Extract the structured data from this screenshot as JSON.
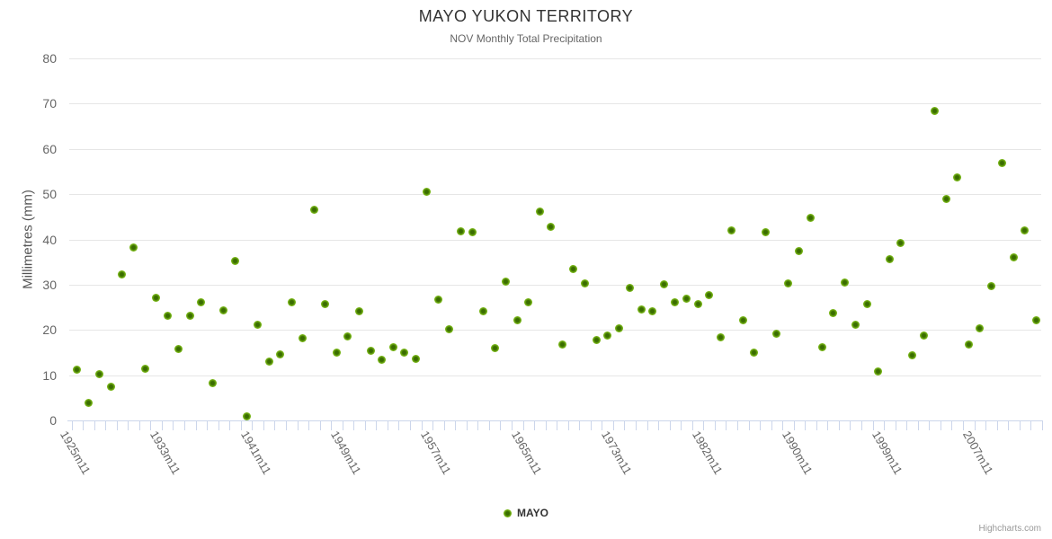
{
  "title": "MAYO YUKON TERRITORY",
  "subtitle": "NOV Monthly Total Precipitation",
  "y_axis": {
    "title": "Millimetres (mm)",
    "tick_labels": [
      "0",
      "10",
      "20",
      "30",
      "40",
      "50",
      "60",
      "70",
      "80"
    ]
  },
  "x_axis": {
    "tick_labels": [
      "1925m11",
      "1933m11",
      "1941m11",
      "1949m11",
      "1957m11",
      "1965m11",
      "1973m11",
      "1982m11",
      "1990m11",
      "1999m11",
      "2007m11"
    ],
    "label_every_n_categories": 8
  },
  "legend": {
    "series_label": "MAYO"
  },
  "credit": "Highcharts.com",
  "colors": {
    "marker_outer": "#77b516",
    "marker_inner": "#3a6d00",
    "grid_line": "#e6e6e6",
    "axis_line": "#ccd6eb",
    "title_text": "#333333",
    "subtitle_text": "#666666",
    "axis_label_text": "#666666",
    "credit_text": "#999999"
  },
  "chart_data": {
    "type": "scatter",
    "title": "MAYO YUKON TERRITORY",
    "subtitle": "NOV Monthly Total Precipitation",
    "ylabel": "Millimetres (mm)",
    "ylim": [
      0,
      80
    ],
    "y_tick_step": 10,
    "grid": "horizontal-only",
    "legend_position": "bottom-center",
    "x_categories_count": 86,
    "x_tick_labels": [
      "1925m11",
      "1933m11",
      "1941m11",
      "1949m11",
      "1957m11",
      "1965m11",
      "1973m11",
      "1982m11",
      "1990m11",
      "1999m11",
      "2007m11"
    ],
    "x_tick_label_category_indices": [
      0,
      8,
      16,
      24,
      32,
      40,
      48,
      56,
      64,
      72,
      80
    ],
    "series": [
      {
        "name": "MAYO",
        "marker_color": "#77b516",
        "values": [
          11.2,
          3.9,
          10.2,
          7.5,
          32.3,
          38.2,
          11.5,
          27.1,
          23.2,
          15.9,
          23.2,
          26.1,
          8.4,
          24.4,
          35.2,
          0.9,
          21.2,
          13.1,
          14.7,
          26.2,
          18.3,
          46.5,
          25.8,
          15.1,
          18.7,
          24.2,
          15.5,
          13.4,
          16.3,
          15.1,
          13.6,
          50.5,
          26.8,
          20.2,
          41.8,
          41.6,
          24.1,
          16.1,
          30.6,
          22.2,
          26.1,
          46.2,
          42.8,
          16.8,
          33.4,
          30.3,
          17.8,
          18.9,
          20.4,
          29.3,
          24.6,
          24.2,
          30.1,
          26.1,
          26.9,
          25.7,
          27.7,
          18.4,
          41.9,
          22.2,
          15.0,
          41.6,
          19.2,
          30.3,
          37.5,
          44.8,
          16.3,
          23.8,
          30.5,
          21.2,
          25.7,
          10.8,
          35.7,
          39.3,
          14.4,
          18.8,
          68.3,
          49.0,
          53.6,
          16.8,
          20.4,
          29.7,
          56.9,
          36.1,
          42.0,
          22.2
        ]
      }
    ]
  }
}
